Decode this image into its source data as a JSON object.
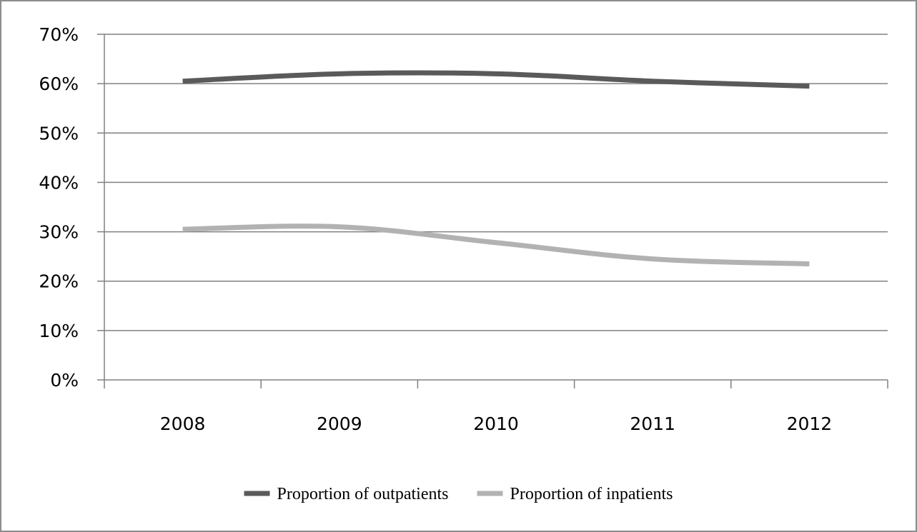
{
  "chart_data": {
    "type": "line",
    "categories": [
      "2008",
      "2009",
      "2010",
      "2011",
      "2012"
    ],
    "series": [
      {
        "name": "Proportion of outpatients",
        "values": [
          60.5,
          62,
          62,
          60.5,
          59.5
        ],
        "color": "#5a5a5a"
      },
      {
        "name": "Proportion of inpatients",
        "values": [
          30.5,
          31,
          27.8,
          24.5,
          23.5
        ],
        "color": "#b2b2b2"
      }
    ],
    "ylim": [
      0,
      70
    ],
    "yticks": [
      0,
      10,
      20,
      30,
      40,
      50,
      60,
      70
    ],
    "ytick_labels": [
      "0%",
      "10%",
      "20%",
      "30%",
      "40%",
      "50%",
      "60%",
      "70%"
    ],
    "grid": true,
    "legend_position": "bottom",
    "title": "",
    "xlabel": "",
    "ylabel": ""
  }
}
